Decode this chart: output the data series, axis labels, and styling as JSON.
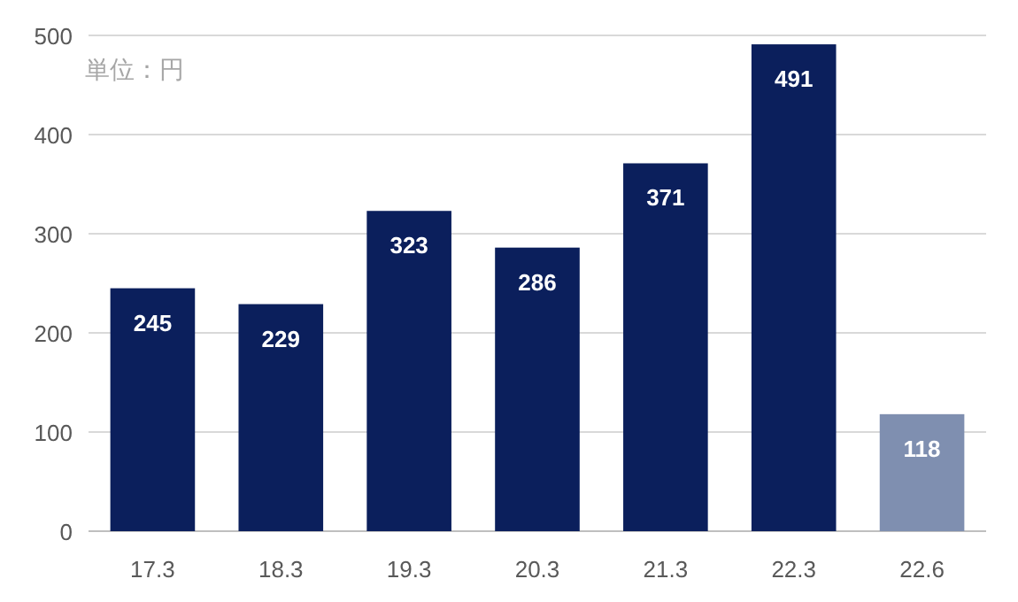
{
  "chart_data": {
    "type": "bar",
    "categories": [
      "17.3",
      "18.3",
      "19.3",
      "20.3",
      "21.3",
      "22.3",
      "22.6"
    ],
    "values": [
      245,
      229,
      323,
      286,
      371,
      491,
      118
    ],
    "colors": [
      "#0b1f5c",
      "#0b1f5c",
      "#0b1f5c",
      "#0b1f5c",
      "#0b1f5c",
      "#0b1f5c",
      "#7f8fb0"
    ],
    "ylim": [
      0,
      500
    ],
    "yticks": [
      0,
      100,
      200,
      300,
      400,
      500
    ],
    "grid": "y",
    "data_labels": true,
    "annotations": [
      "単位：円"
    ]
  }
}
